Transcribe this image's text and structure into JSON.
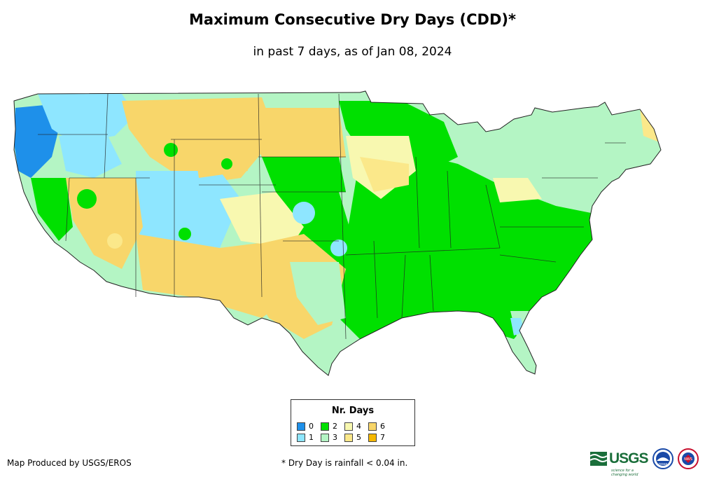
{
  "title": "Maximum Consecutive Dry Days (CDD)*",
  "subtitle": "in past 7 days, as of Jan 08, 2024",
  "legend": {
    "title": "Nr. Days",
    "items": [
      {
        "label": "0",
        "color": "#1e90ea"
      },
      {
        "label": "1",
        "color": "#8ee6ff"
      },
      {
        "label": "2",
        "color": "#00e000"
      },
      {
        "label": "3",
        "color": "#b4f5c4"
      },
      {
        "label": "4",
        "color": "#f8f8b0"
      },
      {
        "label": "5",
        "color": "#fbe88a"
      },
      {
        "label": "6",
        "color": "#f8d66a"
      },
      {
        "label": "7",
        "color": "#f5b800"
      }
    ]
  },
  "credit": "Map Produced by USGS/EROS",
  "footnote": "* Dry Day is rainfall < 0.04 in.",
  "logos": {
    "usgs": "USGS",
    "usgs_tagline": "science for a changing world",
    "noaa": "noaa",
    "nws": "NWS"
  }
}
